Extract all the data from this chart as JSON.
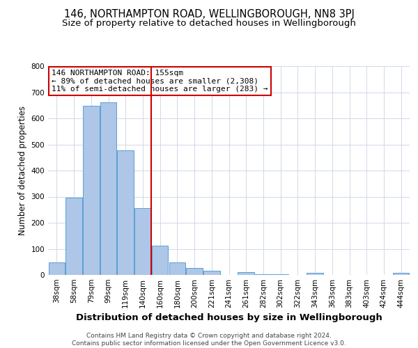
{
  "title": "146, NORTHAMPTON ROAD, WELLINGBOROUGH, NN8 3PJ",
  "subtitle": "Size of property relative to detached houses in Wellingborough",
  "xlabel": "Distribution of detached houses by size in Wellingborough",
  "ylabel": "Number of detached properties",
  "bin_labels": [
    "38sqm",
    "58sqm",
    "79sqm",
    "99sqm",
    "119sqm",
    "140sqm",
    "160sqm",
    "180sqm",
    "200sqm",
    "221sqm",
    "241sqm",
    "261sqm",
    "282sqm",
    "302sqm",
    "322sqm",
    "343sqm",
    "363sqm",
    "383sqm",
    "403sqm",
    "424sqm",
    "444sqm"
  ],
  "bar_heights": [
    47,
    295,
    648,
    662,
    478,
    255,
    113,
    47,
    28,
    15,
    0,
    12,
    3,
    3,
    0,
    8,
    0,
    0,
    0,
    0,
    7
  ],
  "bar_color": "#aec6e8",
  "bar_edgecolor": "#5a9fd4",
  "vline_x": 5.5,
  "vline_color": "#cc0000",
  "annotation_text": "146 NORTHAMPTON ROAD: 155sqm\n← 89% of detached houses are smaller (2,308)\n11% of semi-detached houses are larger (283) →",
  "annotation_box_color": "#cc0000",
  "ylim": [
    0,
    800
  ],
  "yticks": [
    0,
    100,
    200,
    300,
    400,
    500,
    600,
    700,
    800
  ],
  "background_color": "#ffffff",
  "grid_color": "#d0d8e8",
  "footer": "Contains HM Land Registry data © Crown copyright and database right 2024.\nContains public sector information licensed under the Open Government Licence v3.0.",
  "title_fontsize": 10.5,
  "subtitle_fontsize": 9.5,
  "xlabel_fontsize": 9.5,
  "ylabel_fontsize": 8.5,
  "tick_fontsize": 7.5,
  "annotation_fontsize": 8,
  "footer_fontsize": 6.5
}
